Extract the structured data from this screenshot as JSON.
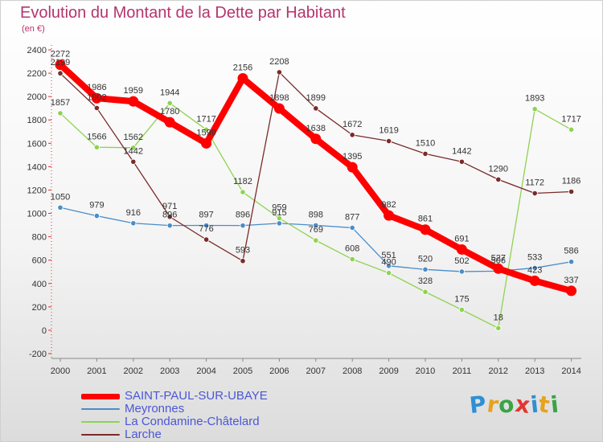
{
  "header": {
    "title": "Evolution du Montant de la Dette par Habitant",
    "subtitle": "(en €)"
  },
  "branding": {
    "logo_text": "Proxiti",
    "letters": [
      {
        "ch": "P",
        "color": "#2f8fd3"
      },
      {
        "ch": "r",
        "color": "#e8a21c"
      },
      {
        "ch": "o",
        "color": "#3aa346"
      },
      {
        "ch": "x",
        "color": "#e2362f"
      },
      {
        "ch": "i",
        "color": "#2f8fd3"
      },
      {
        "ch": "t",
        "color": "#e8a21c"
      },
      {
        "ch": "i",
        "color": "#3aa346"
      }
    ]
  },
  "chart_data": {
    "type": "line",
    "title": "Evolution du Montant de la Dette par Habitant",
    "subtitle": "(en €)",
    "x": [
      "2000",
      "2001",
      "2002",
      "2003",
      "2004",
      "2005",
      "2006",
      "2007",
      "2008",
      "2009",
      "2010",
      "2011",
      "2012",
      "2013",
      "2014"
    ],
    "ylim": [
      -200,
      2400
    ],
    "yticks": [
      -200,
      0,
      200,
      400,
      600,
      800,
      1000,
      1200,
      1400,
      1600,
      1800,
      2000,
      2200,
      2400
    ],
    "grid": false,
    "legend_position": "bottom-left",
    "series": [
      {
        "name": "SAINT-PAUL-SUR-UBAYE",
        "color": "#ff0000",
        "emphasis": true,
        "values": [
          2272,
          1986,
          1959,
          1780,
          1599,
          2156,
          1898,
          1638,
          1395,
          982,
          861,
          691,
          527,
          423,
          337
        ],
        "labels": [
          "2272",
          "1986",
          "1959",
          "1780",
          "1599",
          "2156",
          "1898",
          "1638",
          "1395",
          "982",
          "861",
          "691",
          "527",
          "423",
          "337"
        ]
      },
      {
        "name": "Meyronnes",
        "color": "#4a8dc7",
        "emphasis": false,
        "values": [
          1050,
          979,
          916,
          896,
          897,
          896,
          915,
          898,
          877,
          551,
          520,
          502,
          506,
          533,
          586
        ],
        "labels": [
          "1050",
          "979",
          "916",
          "896",
          "897",
          "896",
          "915",
          "898",
          "877",
          "551",
          "520",
          "502",
          "506",
          "533",
          "586"
        ]
      },
      {
        "name": "La Condamine-Châtelard",
        "color": "#8ed350",
        "emphasis": false,
        "values": [
          1857,
          1566,
          1562,
          1944,
          1717,
          1182,
          959,
          769,
          608,
          490,
          328,
          175,
          18,
          1893,
          1717
        ],
        "labels": [
          "1857",
          "1566",
          "1562",
          "1944",
          "1717",
          "1182",
          "959",
          "769",
          "608",
          "490",
          "328",
          "175",
          "18",
          "1893",
          "1717"
        ]
      },
      {
        "name": "Larche",
        "color": "#7b2a2a",
        "emphasis": false,
        "values": [
          2199,
          1902,
          1442,
          971,
          776,
          593,
          2208,
          1899,
          1672,
          1619,
          1510,
          1442,
          1290,
          1172,
          1186
        ],
        "labels": [
          "2199",
          "1902",
          "1442",
          "971",
          "776",
          "593",
          "2208",
          "1899",
          "1672",
          "1619",
          "1510",
          "1442",
          "1290",
          "1172",
          "1186"
        ]
      }
    ]
  }
}
